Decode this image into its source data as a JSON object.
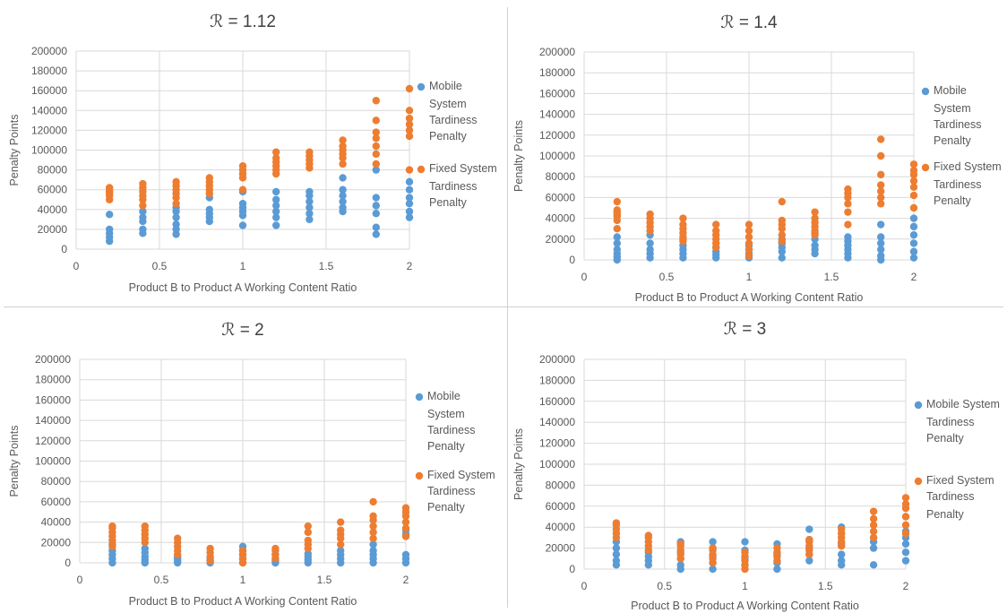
{
  "colors": {
    "mobile": "#5B9BD5",
    "fixed": "#ED7D31",
    "grid": "#d9d9d9",
    "text": "#595959"
  },
  "chart_data": [
    {
      "type": "scatter",
      "title": "ℛ =  1.12",
      "xlabel": "Product B to Product A Working Content Ratio",
      "ylabel": "Penalty Points",
      "xlim": [
        0,
        2
      ],
      "ylim": [
        0,
        200000
      ],
      "xticks": [
        "0",
        "0.5",
        "1",
        "1.5",
        "2"
      ],
      "yticks": [
        "0",
        "20000",
        "40000",
        "60000",
        "80000",
        "100000",
        "120000",
        "140000",
        "160000",
        "180000",
        "200000"
      ],
      "legend": "right",
      "x": [
        0.2,
        0.4,
        0.6,
        0.8,
        1.0,
        1.2,
        1.4,
        1.6,
        1.8,
        2.0
      ],
      "series": [
        {
          "name": "Mobile System Tardiness Penalty",
          "values": [
            [
              8000,
              12000,
              16000,
              20000,
              35000
            ],
            [
              16000,
              20000,
              28000,
              32000,
              38000
            ],
            [
              15000,
              20000,
              25000,
              32000,
              38000,
              42000
            ],
            [
              28000,
              32000,
              36000,
              40000,
              52000
            ],
            [
              24000,
              34000,
              38000,
              42000,
              46000,
              58000
            ],
            [
              24000,
              32000,
              38000,
              44000,
              50000,
              58000
            ],
            [
              30000,
              36000,
              42000,
              48000,
              54000,
              58000
            ],
            [
              38000,
              42000,
              48000,
              54000,
              60000,
              72000
            ],
            [
              15000,
              22000,
              36000,
              44000,
              52000,
              80000
            ],
            [
              32000,
              38000,
              46000,
              52000,
              60000,
              68000
            ]
          ]
        },
        {
          "name": "Fixed System Tardiness Penalty",
          "values": [
            [
              50000,
              54000,
              56000,
              58000,
              60000,
              62000
            ],
            [
              44000,
              50000,
              54000,
              58000,
              62000,
              66000
            ],
            [
              46000,
              52000,
              56000,
              60000,
              64000,
              68000
            ],
            [
              56000,
              60000,
              64000,
              68000,
              72000
            ],
            [
              60000,
              72000,
              76000,
              80000,
              84000
            ],
            [
              76000,
              80000,
              84000,
              88000,
              92000,
              98000
            ],
            [
              82000,
              86000,
              90000,
              94000,
              98000
            ],
            [
              86000,
              92000,
              96000,
              100000,
              104000,
              110000
            ],
            [
              86000,
              96000,
              104000,
              112000,
              118000,
              130000,
              150000
            ],
            [
              80000,
              114000,
              120000,
              126000,
              132000,
              140000,
              162000
            ]
          ]
        }
      ]
    },
    {
      "type": "scatter",
      "title": "ℛ = 1.4",
      "xlabel": "Product B to Product A Working Content Ratio",
      "ylabel": "Penalty Points",
      "xlim": [
        0,
        2
      ],
      "ylim": [
        0,
        200000
      ],
      "xticks": [
        "0",
        "0.5",
        "1",
        "1.5",
        "2"
      ],
      "yticks": [
        "0",
        "20000",
        "40000",
        "60000",
        "80000",
        "100000",
        "120000",
        "140000",
        "160000",
        "180000",
        "200000"
      ],
      "legend": "right",
      "x": [
        0.2,
        0.4,
        0.6,
        0.8,
        1.0,
        1.2,
        1.4,
        1.6,
        1.8,
        2.0
      ],
      "series": [
        {
          "name": "Mobile System Tardiness Penalty",
          "values": [
            [
              0,
              3000,
              6000,
              10000,
              16000,
              22000
            ],
            [
              2000,
              6000,
              10000,
              16000,
              24000
            ],
            [
              2000,
              6000,
              10000,
              14000,
              20000
            ],
            [
              2000,
              5000,
              8000,
              12000
            ],
            [
              2000,
              6000,
              10000,
              14000
            ],
            [
              2000,
              8000,
              12000,
              16000,
              20000
            ],
            [
              6000,
              10000,
              14000,
              20000,
              26000
            ],
            [
              2000,
              6000,
              10000,
              14000,
              18000,
              22000
            ],
            [
              0,
              4000,
              10000,
              16000,
              22000,
              34000
            ],
            [
              2000,
              8000,
              16000,
              24000,
              32000,
              40000
            ]
          ]
        },
        {
          "name": "Fixed System Tardiness Penalty",
          "values": [
            [
              30000,
              38000,
              42000,
              44000,
              46000,
              48000,
              56000
            ],
            [
              28000,
              32000,
              36000,
              40000,
              44000
            ],
            [
              18000,
              22000,
              26000,
              30000,
              34000,
              40000
            ],
            [
              12000,
              16000,
              20000,
              24000,
              28000,
              34000
            ],
            [
              4000,
              10000,
              16000,
              22000,
              28000,
              34000
            ],
            [
              18000,
              24000,
              30000,
              34000,
              38000,
              56000
            ],
            [
              24000,
              28000,
              32000,
              36000,
              40000,
              46000
            ],
            [
              34000,
              46000,
              54000,
              60000,
              64000,
              68000
            ],
            [
              54000,
              60000,
              66000,
              72000,
              82000,
              100000,
              116000
            ],
            [
              50000,
              62000,
              70000,
              76000,
              82000,
              86000,
              92000
            ]
          ]
        }
      ]
    },
    {
      "type": "scatter",
      "title": "ℛ = 2",
      "xlabel": "Product B to Product A Working Content Ratio",
      "ylabel": "Penalty Points",
      "xlim": [
        0,
        2
      ],
      "ylim": [
        0,
        200000
      ],
      "xticks": [
        "0",
        "0.5",
        "1",
        "1.5",
        "2"
      ],
      "yticks": [
        "0",
        "20000",
        "40000",
        "60000",
        "80000",
        "100000",
        "120000",
        "140000",
        "160000",
        "180000",
        "200000"
      ],
      "legend": "right",
      "x": [
        0.2,
        0.4,
        0.6,
        0.8,
        1.0,
        1.2,
        1.4,
        1.6,
        1.8,
        2.0
      ],
      "series": [
        {
          "name": "Mobile System Tardiness Penalty",
          "values": [
            [
              0,
              4000,
              8000,
              12000,
              18000
            ],
            [
              0,
              3000,
              6000,
              10000,
              14000
            ],
            [
              0,
              2000,
              4000,
              6000
            ],
            [
              0,
              2000,
              4000
            ],
            [
              0,
              4000,
              8000,
              12000,
              16000
            ],
            [
              0,
              2000,
              4000,
              8000
            ],
            [
              0,
              3000,
              6000,
              9000
            ],
            [
              0,
              4000,
              8000,
              12000
            ],
            [
              0,
              4000,
              8000,
              12000,
              18000
            ],
            [
              0,
              4000,
              8000,
              28000,
              32000
            ]
          ]
        },
        {
          "name": "Fixed System Tardiness Penalty",
          "values": [
            [
              16000,
              22000,
              26000,
              30000,
              34000,
              36000
            ],
            [
              20000,
              24000,
              28000,
              32000,
              36000
            ],
            [
              8000,
              12000,
              16000,
              20000,
              24000
            ],
            [
              2000,
              6000,
              10000,
              14000
            ],
            [
              0,
              4000,
              8000,
              12000
            ],
            [
              4000,
              8000,
              12000,
              14000
            ],
            [
              14000,
              18000,
              22000,
              30000,
              36000
            ],
            [
              18000,
              24000,
              28000,
              32000,
              40000
            ],
            [
              24000,
              30000,
              36000,
              42000,
              46000,
              60000
            ],
            [
              26000,
              34000,
              40000,
              46000,
              50000,
              54000
            ]
          ]
        }
      ]
    },
    {
      "type": "scatter",
      "title": "ℛ = 3",
      "xlabel": "Product B to Product A Working Content Ratio",
      "ylabel": "Penalty Points",
      "xlim": [
        0,
        2
      ],
      "ylim": [
        0,
        200000
      ],
      "xticks": [
        "0",
        "0.5",
        "1",
        "1.5",
        "2"
      ],
      "yticks": [
        "0",
        "20000",
        "40000",
        "60000",
        "80000",
        "100000",
        "120000",
        "140000",
        "160000",
        "180000",
        "200000"
      ],
      "legend": "right",
      "x": [
        0.2,
        0.4,
        0.6,
        0.8,
        1.0,
        1.2,
        1.4,
        1.6,
        1.8,
        2.0
      ],
      "series": [
        {
          "name": "Mobile System Tardiness Penalty",
          "values": [
            [
              4000,
              8000,
              14000,
              20000,
              26000
            ],
            [
              4000,
              8000,
              12000,
              16000
            ],
            [
              0,
              4000,
              10000,
              16000,
              26000
            ],
            [
              0,
              6000,
              12000,
              20000,
              26000
            ],
            [
              4000,
              10000,
              18000,
              26000
            ],
            [
              0,
              6000,
              14000,
              24000
            ],
            [
              8000,
              14000,
              20000,
              28000,
              38000
            ],
            [
              4000,
              8000,
              14000,
              24000,
              34000,
              40000
            ],
            [
              4000,
              20000,
              26000,
              30000
            ],
            [
              8000,
              16000,
              24000,
              30000,
              36000
            ]
          ]
        },
        {
          "name": "Fixed System Tardiness Penalty",
          "values": [
            [
              30000,
              34000,
              38000,
              42000,
              44000
            ],
            [
              18000,
              22000,
              26000,
              30000,
              32000
            ],
            [
              10000,
              14000,
              18000,
              22000,
              24000
            ],
            [
              6000,
              10000,
              14000,
              18000,
              20000
            ],
            [
              0,
              4000,
              8000,
              12000,
              16000
            ],
            [
              8000,
              12000,
              16000,
              20000
            ],
            [
              14000,
              18000,
              22000,
              26000,
              28000
            ],
            [
              22000,
              26000,
              30000,
              34000,
              38000
            ],
            [
              30000,
              36000,
              42000,
              48000,
              55000
            ],
            [
              34000,
              42000,
              50000,
              58000,
              62000,
              68000
            ]
          ]
        }
      ]
    }
  ]
}
